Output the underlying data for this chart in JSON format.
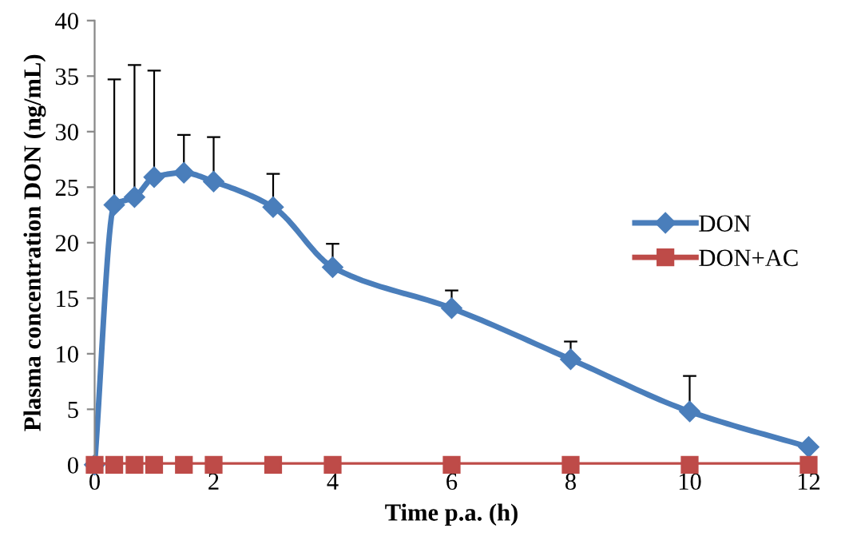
{
  "chart_data": {
    "type": "line",
    "xlabel": "Time p.a. (h)",
    "ylabel": "Plasma concentration DON (ng/mL)",
    "x": [
      0,
      0.33,
      0.67,
      1,
      1.5,
      2,
      3,
      4,
      6,
      8,
      10,
      12
    ],
    "series": [
      {
        "name": "DON",
        "color": "#4a7ebb",
        "marker": "diamond",
        "values": [
          0,
          23.4,
          24.1,
          25.9,
          26.3,
          25.5,
          23.2,
          17.8,
          14.1,
          9.5,
          4.8,
          1.6
        ],
        "errors": [
          null,
          [
            23.4,
            34.7
          ],
          [
            24.1,
            36.0
          ],
          [
            25.9,
            35.5
          ],
          [
            26.3,
            29.7
          ],
          [
            25.5,
            29.5
          ],
          [
            23.2,
            26.2
          ],
          [
            17.8,
            19.9
          ],
          [
            14.1,
            15.7
          ],
          [
            9.5,
            11.1
          ],
          [
            4.8,
            8.0
          ],
          null
        ]
      },
      {
        "name": "DON+AC",
        "color": "#be4b48",
        "marker": "square",
        "values": [
          0,
          0,
          0,
          0,
          0,
          0,
          0,
          0,
          0,
          0,
          0,
          0
        ]
      }
    ],
    "xlim": [
      0,
      12
    ],
    "xticks": [
      0,
      2,
      4,
      6,
      8,
      10,
      12
    ],
    "ylim": [
      0,
      40
    ],
    "yticks": [
      0,
      5,
      10,
      15,
      20,
      25,
      30,
      35,
      40
    ],
    "grid": false,
    "legend": "right",
    "line_style": "solid"
  }
}
